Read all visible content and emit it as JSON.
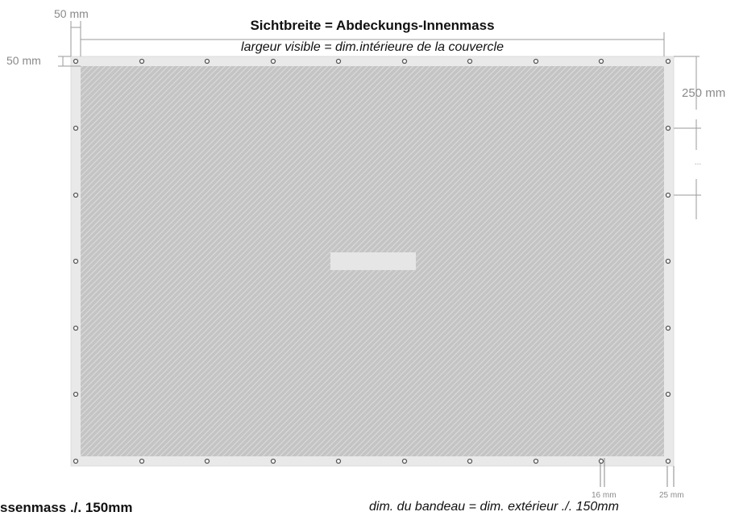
{
  "header": {
    "title_de": "Sichtbreite = Abdeckungs-Innenmass",
    "title_fr": "largeur visible = dim.intérieure de la couvercle"
  },
  "dimensions": {
    "top_margin": "50 mm",
    "left_margin": "50 mm",
    "eyelet_spacing": "250 mm",
    "ellipsis": "...",
    "eyelet_diameter": "16 mm",
    "edge_offset": "25 mm"
  },
  "footer": {
    "left_text": "ssenmass ./. 150mm",
    "right_text": "dim. du bandeau = dim. extérieur ./. 150mm"
  },
  "colors": {
    "frame": "#e9e9e9",
    "mesh_base": "#c4c4c4",
    "mesh_stripe": "#dddddd",
    "eyelet_stroke": "#555555",
    "dimension_line": "#9a9a9a"
  }
}
